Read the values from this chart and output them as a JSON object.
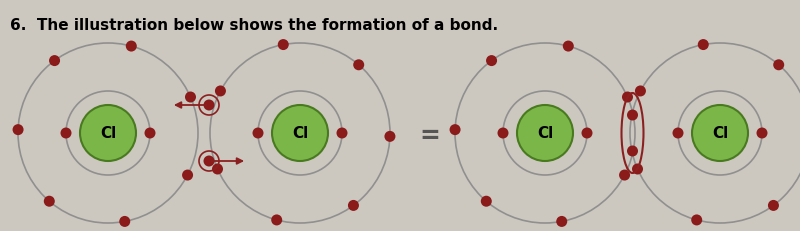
{
  "title": "6.  The illustration below shows the formation of a bond.",
  "bg_color": "#ccc8bf",
  "orbit_color": "#909090",
  "nucleus_fill": "#7ab648",
  "nucleus_edge": "#4a7a20",
  "electron_color": "#8b1a1a",
  "arrow_color": "#8b2020",
  "bond_ellipse_color": "#8b2020",
  "label": "Cl",
  "figw": 8.0,
  "figh": 2.31,
  "dpi": 100
}
